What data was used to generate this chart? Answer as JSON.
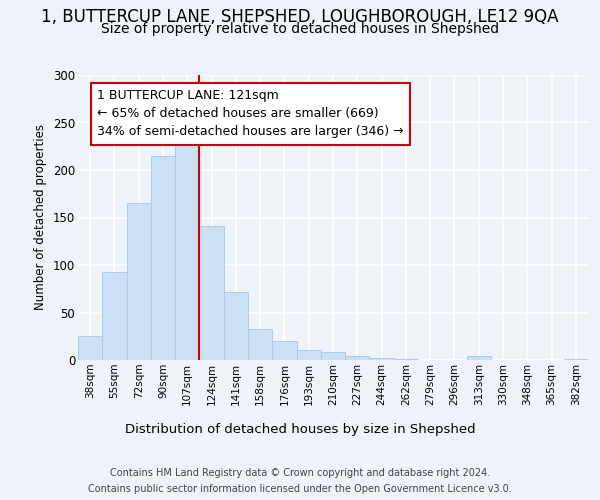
{
  "title": "1, BUTTERCUP LANE, SHEPSHED, LOUGHBOROUGH, LE12 9QA",
  "subtitle": "Size of property relative to detached houses in Shepshed",
  "xlabel": "Distribution of detached houses by size in Shepshed",
  "ylabel": "Number of detached properties",
  "footer_line1": "Contains HM Land Registry data © Crown copyright and database right 2024.",
  "footer_line2": "Contains public sector information licensed under the Open Government Licence v3.0.",
  "bin_labels": [
    "38sqm",
    "55sqm",
    "72sqm",
    "90sqm",
    "107sqm",
    "124sqm",
    "141sqm",
    "158sqm",
    "176sqm",
    "193sqm",
    "210sqm",
    "227sqm",
    "244sqm",
    "262sqm",
    "279sqm",
    "296sqm",
    "313sqm",
    "330sqm",
    "348sqm",
    "365sqm",
    "382sqm"
  ],
  "bar_values": [
    25,
    93,
    165,
    215,
    233,
    141,
    72,
    33,
    20,
    11,
    8,
    4,
    2,
    1,
    0,
    0,
    4,
    0,
    0,
    0,
    1
  ],
  "bar_color": "#cce0f5",
  "bar_edge_color": "#aaccee",
  "property_label": "1 BUTTERCUP LANE: 121sqm",
  "smaller_pct": "65% of detached houses are smaller (669)",
  "larger_pct": "34% of semi-detached houses are larger (346)",
  "vline_color": "#cc0000",
  "annotation_box_color": "#cc0000",
  "background_color": "#eef2f9",
  "grid_color": "#ffffff",
  "ylim": [
    0,
    300
  ],
  "yticks": [
    0,
    50,
    100,
    150,
    200,
    250,
    300
  ],
  "vline_x_index": 4.5,
  "title_fontsize": 12,
  "subtitle_fontsize": 10,
  "annotation_fontsize": 9
}
